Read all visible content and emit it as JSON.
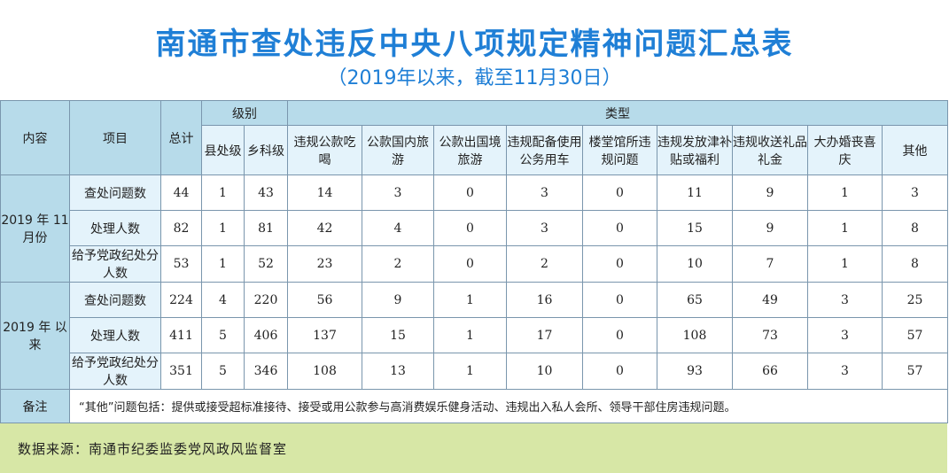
{
  "title": "南通市查处违反中央八项规定精神问题汇总表",
  "subtitle": "（2019年以来，截至11月30日）",
  "headers": {
    "content": "内容",
    "item": "项目",
    "total": "总计",
    "level": "级别",
    "county": "县处级",
    "township": "乡科级",
    "type": "类型",
    "types": [
      "违规公款吃喝",
      "公款国内旅游",
      "公款出国境旅游",
      "违规配备使用公务用车",
      "楼堂馆所违规问题",
      "违规发放津补贴或福利",
      "违规收送礼品礼金",
      "大办婚丧喜庆",
      "其他"
    ]
  },
  "groups": [
    {
      "label": "2019 年 11 月份",
      "rows": [
        {
          "item": "查处问题数",
          "total": "44",
          "county": "1",
          "township": "43",
          "types": [
            "14",
            "3",
            "0",
            "3",
            "0",
            "11",
            "9",
            "1",
            "3"
          ]
        },
        {
          "item": "处理人数",
          "total": "82",
          "county": "1",
          "township": "81",
          "types": [
            "42",
            "4",
            "0",
            "3",
            "0",
            "15",
            "9",
            "1",
            "8"
          ]
        },
        {
          "item": "给予党政纪处分人数",
          "total": "53",
          "county": "1",
          "township": "52",
          "types": [
            "23",
            "2",
            "0",
            "2",
            "0",
            "10",
            "7",
            "1",
            "8"
          ]
        }
      ]
    },
    {
      "label": "2019 年 以来",
      "rows": [
        {
          "item": "查处问题数",
          "total": "224",
          "county": "4",
          "township": "220",
          "types": [
            "56",
            "9",
            "1",
            "16",
            "0",
            "65",
            "49",
            "3",
            "25"
          ]
        },
        {
          "item": "处理人数",
          "total": "411",
          "county": "5",
          "township": "406",
          "types": [
            "137",
            "15",
            "1",
            "17",
            "0",
            "108",
            "73",
            "3",
            "57"
          ]
        },
        {
          "item": "给予党政纪处分人数",
          "total": "351",
          "county": "5",
          "township": "346",
          "types": [
            "108",
            "13",
            "1",
            "10",
            "0",
            "93",
            "66",
            "3",
            "57"
          ]
        }
      ]
    }
  ],
  "note": {
    "label": "备注",
    "text": "“其他”问题包括：提供或接受超标准接待、接受或用公款参与高消费娱乐健身活动、违规出入私人会所、领导干部住房违规问题。"
  },
  "footer": "数据来源：南通市纪委监委党风政风监督室"
}
